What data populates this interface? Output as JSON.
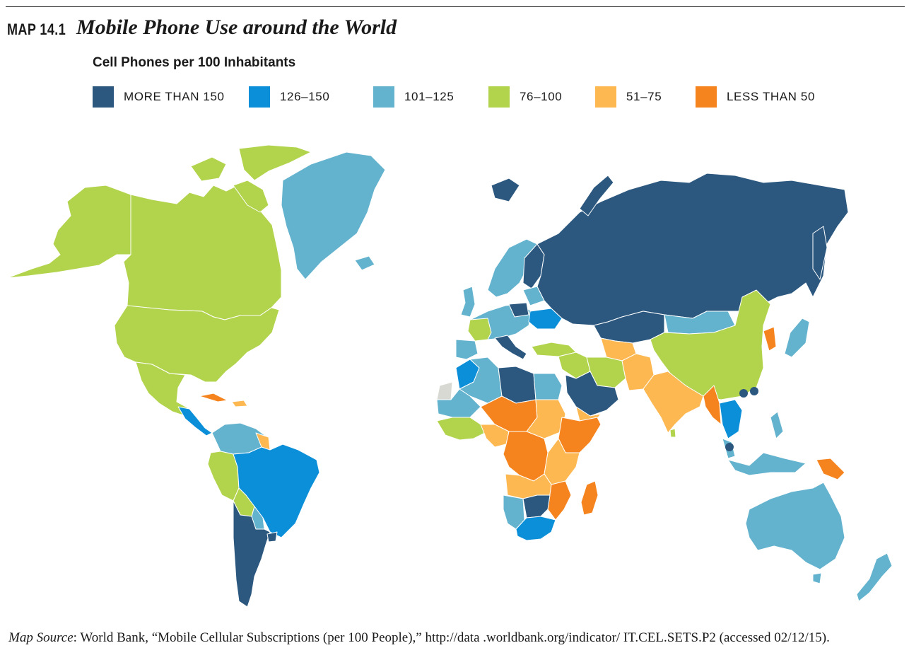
{
  "header": {
    "map_number": "MAP 14.1",
    "title": "Mobile Phone Use around the World"
  },
  "legend": {
    "title": "Cell Phones per 100 Inhabitants",
    "items": [
      {
        "label": "MORE THAN 150",
        "color": "#2c587f"
      },
      {
        "label": "126–150",
        "color": "#0b8fd9"
      },
      {
        "label": "101–125",
        "color": "#63b2ce"
      },
      {
        "label": "76–100",
        "color": "#b2d34c"
      },
      {
        "label": "51–75",
        "color": "#fdb852"
      },
      {
        "label": "LESS THAN 50",
        "color": "#f5841e"
      }
    ]
  },
  "no_data_color": "#d9d9d4",
  "source": {
    "label": "Map Source",
    "text": ": World Bank, “Mobile Cellular Subscriptions (per 100 People),” http://data .worldbank.org/indicator/ IT.CEL.SETS.P2 (accessed 02/12/15)."
  }
}
